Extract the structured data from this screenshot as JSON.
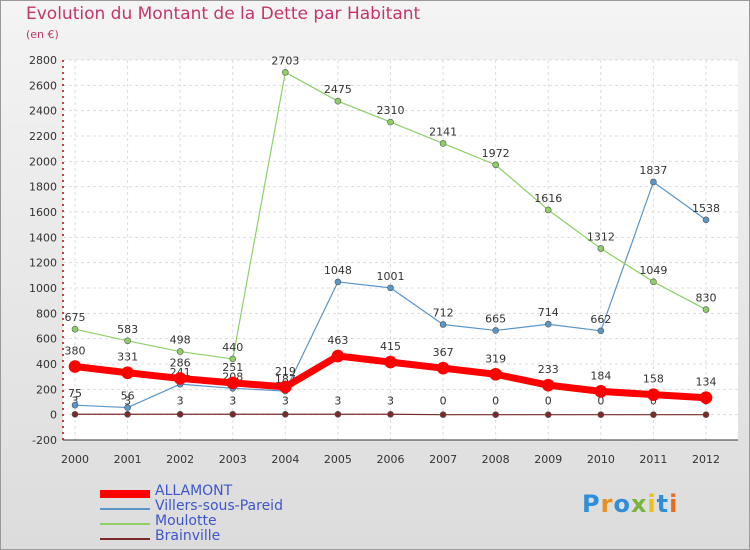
{
  "title": "Evolution du Montant de la Dette par Habitant",
  "unit": "(en €)",
  "logo": {
    "text": "Proxiti",
    "letter_colors": [
      "#2f8ed8",
      "#e8901f",
      "#2f8ed8",
      "#78b53a",
      "#e8c11a",
      "#2f8ed8",
      "#e86a1f"
    ]
  },
  "chart_data": {
    "type": "line",
    "x": [
      "2000",
      "2001",
      "2002",
      "2003",
      "2004",
      "2005",
      "2006",
      "2007",
      "2008",
      "2009",
      "2010",
      "2011",
      "2012"
    ],
    "ylim": [
      -200,
      2800
    ],
    "yticks": [
      -200,
      0,
      200,
      400,
      600,
      800,
      1000,
      1200,
      1400,
      1600,
      1800,
      2000,
      2200,
      2400,
      2600,
      2800
    ],
    "grid": true,
    "legend_position": "bottom-left",
    "series": [
      {
        "name": "Brainville",
        "color": "#7a2a2a",
        "values": [
          3,
          3,
          3,
          3,
          3,
          3,
          3,
          0,
          0,
          0,
          0,
          0,
          0
        ],
        "labels": [
          "3",
          "3",
          "3",
          "3",
          "3",
          "3",
          "3",
          "0",
          "0",
          "0",
          "0",
          "0",
          "0"
        ]
      },
      {
        "name": "Villers-sous-Pareid",
        "color": "#5b96c8",
        "values": [
          75,
          56,
          241,
          208,
          187,
          1048,
          1001,
          712,
          665,
          714,
          662,
          1837,
          1538
        ],
        "labels": [
          "75",
          "56",
          "241",
          "208",
          "187",
          "1048",
          "1001",
          "712",
          "665",
          "714",
          "662",
          "1837",
          "1538"
        ]
      },
      {
        "name": "Moulotte",
        "color": "#8fd066",
        "values": [
          675,
          583,
          498,
          440,
          2703,
          2475,
          2310,
          2141,
          1972,
          1616,
          1312,
          1049,
          830
        ],
        "labels": [
          "675",
          "583",
          "498",
          "440",
          "2703",
          "2475",
          "2310",
          "2141",
          "1972",
          "1616",
          "1312",
          "1049",
          "830"
        ]
      },
      {
        "name": "ALLAMONT",
        "color": "#ff0000",
        "values": [
          380,
          331,
          286,
          251,
          219,
          463,
          415,
          367,
          319,
          233,
          184,
          158,
          134
        ],
        "labels": [
          "380",
          "331",
          "286",
          "251",
          "219",
          "463",
          "415",
          "367",
          "319",
          "233",
          "184",
          "158",
          "134"
        ]
      }
    ],
    "legend_order": [
      "ALLAMONT",
      "Villers-sous-Pareid",
      "Moulotte",
      "Brainville"
    ]
  }
}
